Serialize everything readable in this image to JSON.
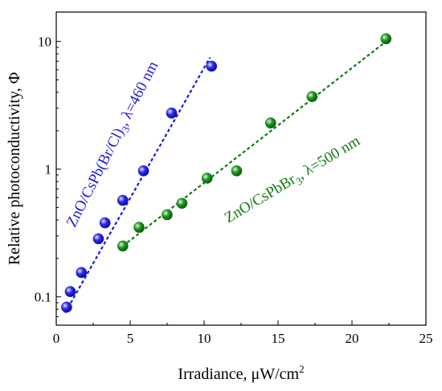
{
  "chart_data": {
    "type": "scatter",
    "xlabel": "Irradiance, μW/cm",
    "xlabel_sup": "2",
    "ylabel": "Relative photoconductivity, Φ",
    "xlim": [
      0,
      25
    ],
    "ylim": [
      0.06,
      17
    ],
    "yscale": "log",
    "x_ticks": [
      0,
      5,
      10,
      15,
      20,
      25
    ],
    "y_ticks": [
      0.1,
      1,
      10
    ],
    "y_tick_labels": [
      "0.1",
      "1",
      "10"
    ],
    "grid": false,
    "series": [
      {
        "label_main": "ZnO/CsPb(Br/Cl)",
        "label_sub": "3",
        "label_rest": ", λ=460 nm",
        "color": "#1a1adb",
        "x": [
          0.7,
          0.95,
          1.7,
          2.85,
          3.3,
          4.5,
          5.9,
          7.8,
          10.5
        ],
        "y": [
          0.083,
          0.11,
          0.155,
          0.285,
          0.38,
          0.57,
          0.97,
          2.75,
          6.4
        ],
        "fit": {
          "x": [
            0.6,
            10.4
          ],
          "y": [
            0.075,
            7.5
          ]
        }
      },
      {
        "label_main": "ZnO/CsPbBr",
        "label_sub": "3",
        "label_rest": ", λ=500 nm",
        "color": "#127a12",
        "x": [
          4.5,
          5.6,
          7.5,
          8.5,
          10.2,
          12.2,
          14.5,
          17.3,
          22.3
        ],
        "y": [
          0.25,
          0.35,
          0.44,
          0.54,
          0.85,
          0.97,
          2.3,
          3.7,
          10.5
        ],
        "fit": {
          "x": [
            4.5,
            22.4
          ],
          "y": [
            0.25,
            10.2
          ]
        }
      }
    ]
  }
}
